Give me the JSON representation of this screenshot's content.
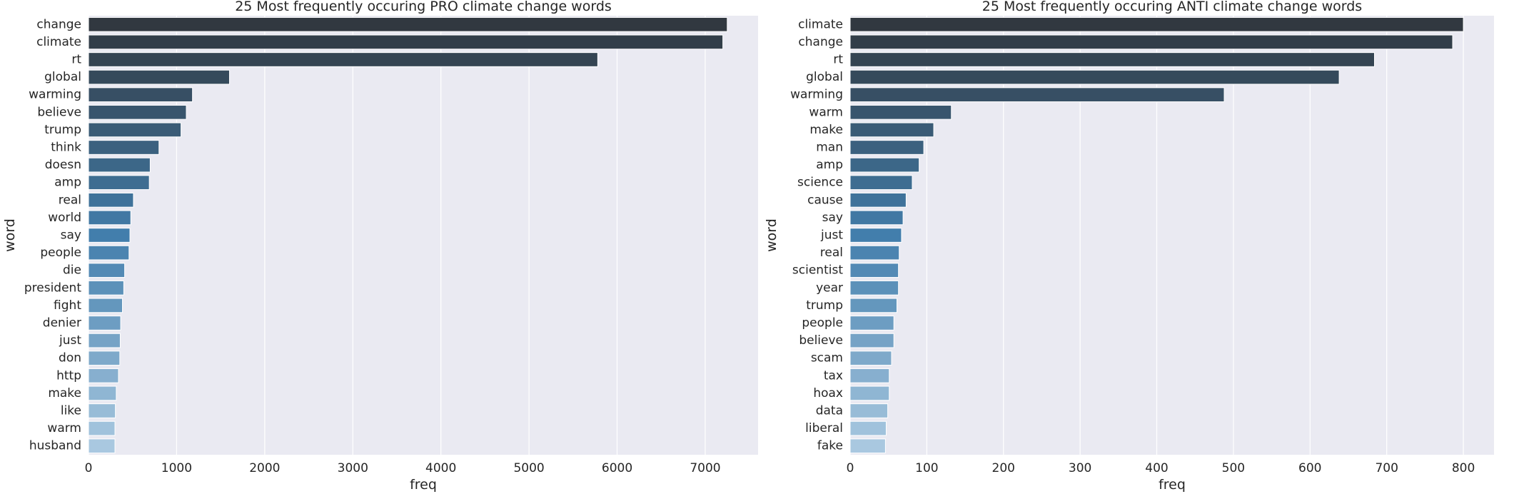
{
  "chart_data": [
    {
      "type": "bar",
      "orientation": "horizontal",
      "title": "25 Most frequently occuring PRO climate change words",
      "xlabel": "freq",
      "ylabel": "word",
      "xlim": [
        0,
        7600
      ],
      "xticks": [
        0,
        1000,
        2000,
        3000,
        4000,
        5000,
        6000,
        7000
      ],
      "grid": true,
      "categories": [
        "change",
        "climate",
        "rt",
        "global",
        "warming",
        "believe",
        "trump",
        "think",
        "doesn",
        "amp",
        "real",
        "world",
        "say",
        "people",
        "die",
        "president",
        "fight",
        "denier",
        "just",
        "don",
        "http",
        "make",
        "like",
        "warm",
        "husband"
      ],
      "values": [
        7250,
        7200,
        5780,
        1600,
        1180,
        1110,
        1050,
        800,
        700,
        690,
        510,
        480,
        470,
        460,
        410,
        400,
        385,
        365,
        360,
        355,
        340,
        315,
        305,
        300,
        300
      ]
    },
    {
      "type": "bar",
      "orientation": "horizontal",
      "title": "25 Most frequently occuring ANTI climate change words",
      "xlabel": "freq",
      "ylabel": "word",
      "xlim": [
        0,
        840
      ],
      "xticks": [
        0,
        100,
        200,
        300,
        400,
        500,
        600,
        700,
        800
      ],
      "grid": true,
      "categories": [
        "climate",
        "change",
        "rt",
        "global",
        "warming",
        "warm",
        "make",
        "man",
        "amp",
        "science",
        "cause",
        "say",
        "just",
        "real",
        "scientist",
        "year",
        "trump",
        "people",
        "believe",
        "scam",
        "tax",
        "hoax",
        "data",
        "liberal",
        "fake"
      ],
      "values": [
        800,
        786,
        684,
        638,
        488,
        132,
        109,
        96,
        90,
        81,
        73,
        69,
        67,
        64,
        63,
        63,
        61,
        57,
        57,
        54,
        51,
        51,
        49,
        47,
        46
      ]
    }
  ]
}
